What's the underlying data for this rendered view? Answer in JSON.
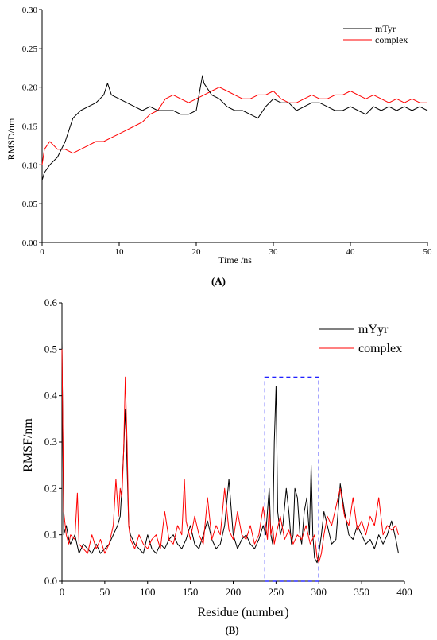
{
  "chart_data": [
    {
      "type": "line",
      "panel_label": "(A)",
      "xlabel": "Time /ns",
      "ylabel": "RMSD/nm",
      "xlim": [
        0,
        50
      ],
      "ylim": [
        0,
        0.3
      ],
      "xticks": [
        "0",
        "10",
        "20",
        "30",
        "40",
        "50"
      ],
      "yticks": [
        "0.00",
        "0.05",
        "0.10",
        "0.15",
        "0.20",
        "0.25",
        "0.30"
      ],
      "legend_position": "top-right",
      "series": [
        {
          "name": "mTyr",
          "color": "#000000",
          "x": [
            0,
            0.3,
            1,
            2,
            3,
            4,
            5,
            6,
            7,
            8,
            8.5,
            9,
            10,
            11,
            12,
            13,
            14,
            15,
            16,
            17,
            18,
            19,
            20,
            20.8,
            21,
            22,
            23,
            24,
            25,
            26,
            27,
            28,
            29,
            30,
            31,
            32,
            33,
            34,
            35,
            36,
            37,
            38,
            39,
            40,
            41,
            42,
            43,
            44,
            45,
            46,
            47,
            48,
            49,
            50
          ],
          "y": [
            0.08,
            0.09,
            0.1,
            0.11,
            0.13,
            0.16,
            0.17,
            0.175,
            0.18,
            0.19,
            0.205,
            0.19,
            0.185,
            0.18,
            0.175,
            0.17,
            0.175,
            0.17,
            0.17,
            0.17,
            0.165,
            0.165,
            0.17,
            0.215,
            0.205,
            0.19,
            0.185,
            0.175,
            0.17,
            0.17,
            0.165,
            0.16,
            0.175,
            0.185,
            0.18,
            0.18,
            0.17,
            0.175,
            0.18,
            0.18,
            0.175,
            0.17,
            0.17,
            0.175,
            0.17,
            0.165,
            0.175,
            0.17,
            0.175,
            0.17,
            0.175,
            0.17,
            0.175,
            0.17
          ]
        },
        {
          "name": "complex",
          "color": "#ff0000",
          "x": [
            0,
            0.3,
            1,
            2,
            3,
            4,
            5,
            6,
            7,
            8,
            9,
            10,
            11,
            12,
            13,
            14,
            15,
            16,
            17,
            18,
            19,
            20,
            21,
            22,
            23,
            24,
            25,
            26,
            27,
            28,
            29,
            30,
            31,
            32,
            33,
            34,
            35,
            36,
            37,
            38,
            39,
            40,
            41,
            42,
            43,
            44,
            45,
            46,
            47,
            48,
            49,
            50
          ],
          "y": [
            0.1,
            0.12,
            0.13,
            0.12,
            0.12,
            0.115,
            0.12,
            0.125,
            0.13,
            0.13,
            0.135,
            0.14,
            0.145,
            0.15,
            0.155,
            0.165,
            0.17,
            0.185,
            0.19,
            0.185,
            0.18,
            0.185,
            0.19,
            0.195,
            0.2,
            0.195,
            0.19,
            0.185,
            0.185,
            0.19,
            0.19,
            0.195,
            0.185,
            0.18,
            0.18,
            0.185,
            0.19,
            0.185,
            0.185,
            0.19,
            0.19,
            0.195,
            0.19,
            0.185,
            0.19,
            0.185,
            0.18,
            0.185,
            0.18,
            0.185,
            0.18,
            0.18
          ]
        }
      ]
    },
    {
      "type": "line",
      "panel_label": "(B)",
      "xlabel": "Residue (number)",
      "ylabel": "RMSF/nm",
      "xlim": [
        0,
        400
      ],
      "ylim": [
        0,
        0.6
      ],
      "xticks": [
        "0",
        "50",
        "100",
        "150",
        "200",
        "250",
        "300",
        "350",
        "400"
      ],
      "yticks": [
        "0.0",
        "0.1",
        "0.2",
        "0.3",
        "0.4",
        "0.5",
        "0.6"
      ],
      "legend_position": "top-right",
      "highlight_box": {
        "x": [
          237,
          300
        ],
        "y": [
          0,
          0.44
        ],
        "color": "#0000ff",
        "style": "dashed"
      },
      "series": [
        {
          "name": "mYyr",
          "color": "#000000",
          "x": [
            0,
            2,
            5,
            8,
            10,
            15,
            20,
            25,
            30,
            35,
            40,
            45,
            50,
            55,
            60,
            65,
            68,
            70,
            72,
            74,
            76,
            78,
            80,
            85,
            90,
            95,
            100,
            105,
            110,
            115,
            120,
            125,
            130,
            135,
            140,
            145,
            150,
            155,
            160,
            165,
            170,
            175,
            180,
            185,
            190,
            195,
            200,
            205,
            210,
            215,
            220,
            225,
            230,
            235,
            238,
            240,
            242,
            244,
            246,
            248,
            250,
            252,
            255,
            258,
            262,
            265,
            268,
            270,
            272,
            275,
            278,
            280,
            283,
            286,
            289,
            291,
            293,
            295,
            298,
            300,
            303,
            306,
            310,
            315,
            320,
            325,
            330,
            335,
            340,
            345,
            350,
            355,
            360,
            365,
            370,
            375,
            380,
            385,
            390,
            393
          ],
          "y": [
            0.52,
            0.1,
            0.12,
            0.09,
            0.08,
            0.1,
            0.06,
            0.08,
            0.07,
            0.06,
            0.08,
            0.06,
            0.07,
            0.08,
            0.1,
            0.12,
            0.14,
            0.2,
            0.28,
            0.37,
            0.25,
            0.12,
            0.1,
            0.08,
            0.07,
            0.06,
            0.1,
            0.07,
            0.06,
            0.08,
            0.07,
            0.09,
            0.1,
            0.08,
            0.07,
            0.09,
            0.12,
            0.08,
            0.07,
            0.1,
            0.13,
            0.09,
            0.07,
            0.08,
            0.12,
            0.22,
            0.1,
            0.07,
            0.09,
            0.1,
            0.08,
            0.07,
            0.09,
            0.12,
            0.1,
            0.15,
            0.2,
            0.1,
            0.08,
            0.3,
            0.42,
            0.15,
            0.1,
            0.12,
            0.2,
            0.15,
            0.08,
            0.1,
            0.2,
            0.18,
            0.1,
            0.08,
            0.15,
            0.18,
            0.1,
            0.25,
            0.1,
            0.05,
            0.04,
            0.06,
            0.1,
            0.15,
            0.12,
            0.08,
            0.09,
            0.21,
            0.15,
            0.1,
            0.09,
            0.12,
            0.1,
            0.08,
            0.09,
            0.07,
            0.1,
            0.08,
            0.1,
            0.13,
            0.09,
            0.06
          ]
        },
        {
          "name": "complex",
          "color": "#ff0000",
          "x": [
            0,
            2,
            5,
            8,
            10,
            15,
            18,
            20,
            25,
            30,
            35,
            40,
            45,
            50,
            55,
            60,
            63,
            66,
            68,
            70,
            72,
            74,
            76,
            78,
            80,
            85,
            90,
            95,
            100,
            105,
            110,
            115,
            120,
            125,
            130,
            135,
            140,
            143,
            145,
            150,
            155,
            160,
            165,
            170,
            175,
            180,
            185,
            190,
            195,
            200,
            205,
            210,
            215,
            220,
            225,
            230,
            235,
            238,
            240,
            242,
            244,
            246,
            248,
            250,
            255,
            260,
            265,
            270,
            275,
            280,
            285,
            290,
            295,
            298,
            300,
            303,
            306,
            310,
            315,
            320,
            325,
            330,
            335,
            340,
            345,
            350,
            355,
            360,
            365,
            370,
            375,
            380,
            385,
            390,
            393
          ],
          "y": [
            0.5,
            0.15,
            0.1,
            0.08,
            0.1,
            0.09,
            0.19,
            0.08,
            0.07,
            0.06,
            0.1,
            0.07,
            0.09,
            0.06,
            0.08,
            0.12,
            0.22,
            0.14,
            0.2,
            0.18,
            0.28,
            0.44,
            0.3,
            0.12,
            0.09,
            0.07,
            0.1,
            0.08,
            0.07,
            0.09,
            0.1,
            0.07,
            0.15,
            0.09,
            0.08,
            0.12,
            0.1,
            0.22,
            0.13,
            0.09,
            0.14,
            0.1,
            0.08,
            0.18,
            0.09,
            0.12,
            0.1,
            0.2,
            0.11,
            0.09,
            0.15,
            0.1,
            0.09,
            0.12,
            0.08,
            0.1,
            0.16,
            0.12,
            0.09,
            0.16,
            0.1,
            0.12,
            0.08,
            0.1,
            0.14,
            0.09,
            0.11,
            0.08,
            0.1,
            0.09,
            0.12,
            0.08,
            0.1,
            0.05,
            0.04,
            0.06,
            0.1,
            0.14,
            0.12,
            0.16,
            0.2,
            0.14,
            0.12,
            0.18,
            0.11,
            0.13,
            0.1,
            0.14,
            0.12,
            0.18,
            0.1,
            0.12,
            0.11,
            0.12,
            0.1
          ]
        }
      ]
    }
  ]
}
